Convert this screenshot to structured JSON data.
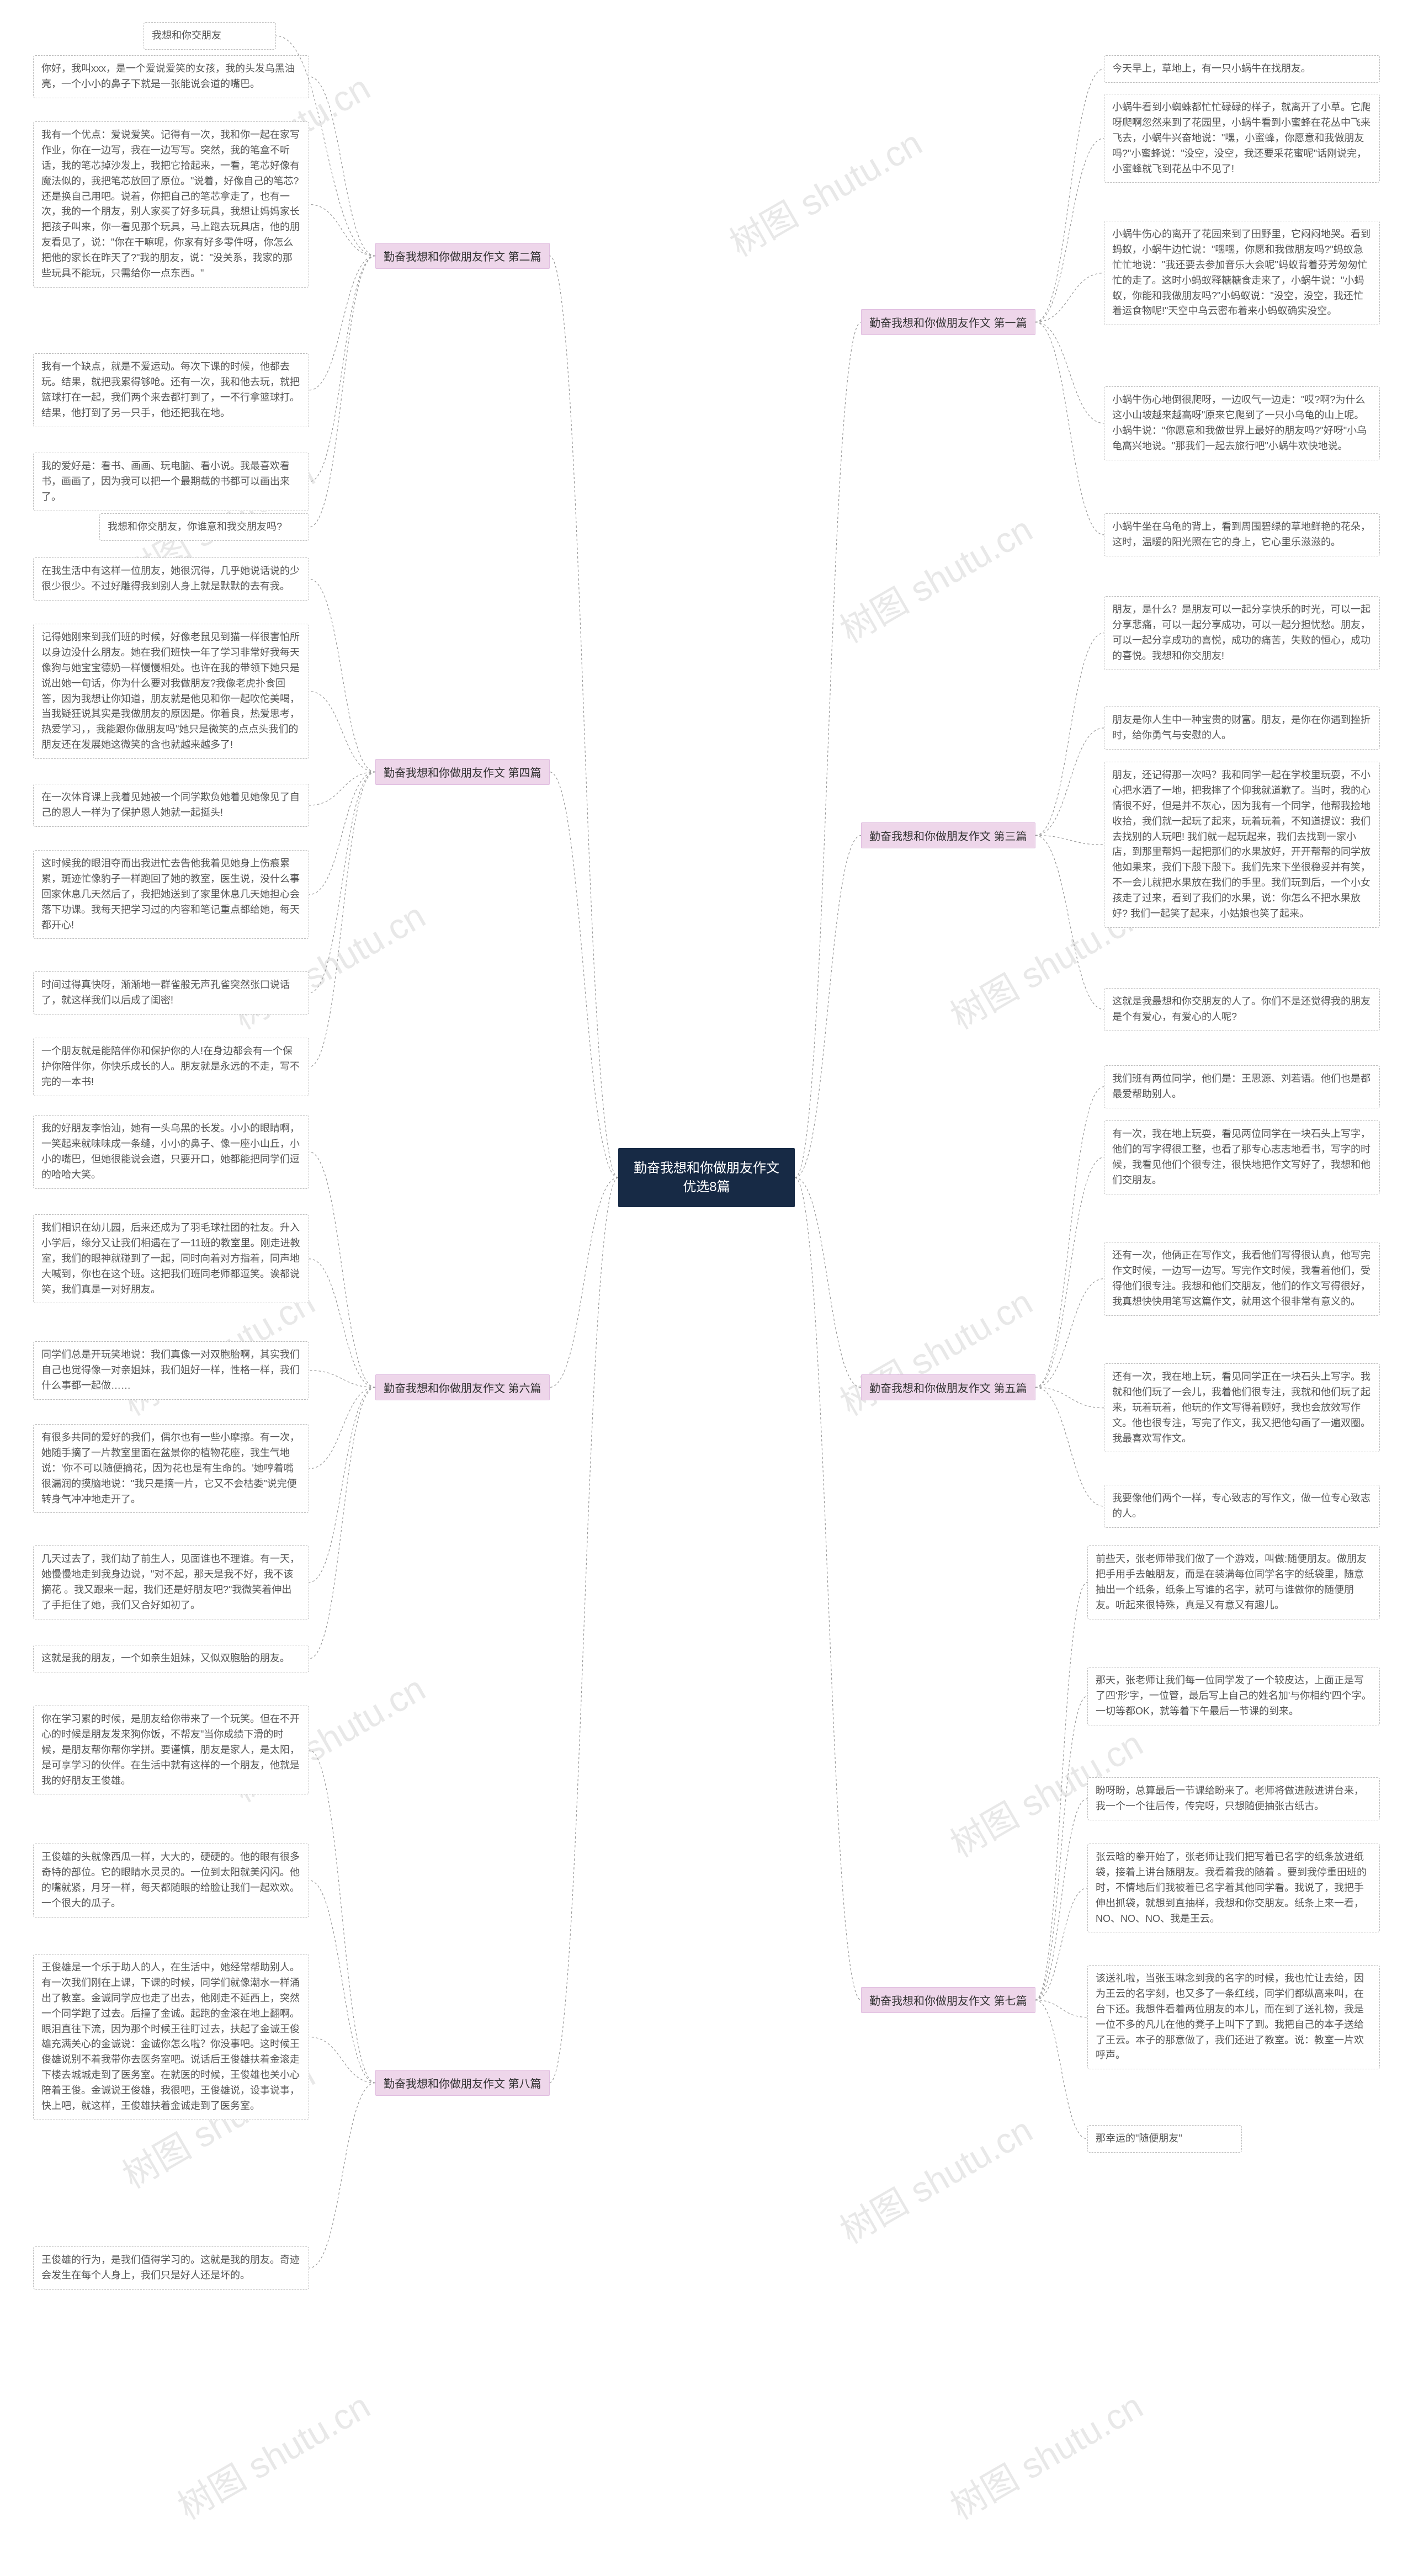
{
  "watermark_text": "树图 shutu.cn",
  "center": {
    "title": "勤奋我想和你做朋友作文优选8篇"
  },
  "branch_label_bg": "#eed6ea",
  "branch_label_border": "#e0bde0",
  "center_bg": "#172a45",
  "center_color": "#ffffff",
  "leaf_border": "#bbbbbb",
  "leaf_color": "#555555",
  "connector_color": "#999999",
  "branches": [
    {
      "id": "b1",
      "side": "right",
      "label": "勤奋我想和你做朋友作文 第一篇",
      "leaves": [
        "今天早上，草地上，有一只小蜗牛在找朋友。",
        "小蜗牛看到小蜘蛛都忙忙碌碌的样子，就离开了小草。它爬呀爬啊忽然来到了花园里，小蜗牛看到小蜜蜂在花丛中飞来飞去，小蜗牛兴奋地说：\"嘿，小蜜蜂，你愿意和我做朋友吗?\"小蜜蜂说：\"没空，没空，我还要采花蜜呢\"话刚说完，小蜜蜂就飞到花丛中不见了!",
        "小蜗牛伤心的离开了花园来到了田野里，它闷闷地哭。看到蚂蚁，小蜗牛边忙说：\"嘿嘿，你愿和我做朋友吗?\"蚂蚁急忙忙地说：\"我还要去参加音乐大会呢\"蚂蚁背着芬芳匆匆忙忙的走了。这时小蚂蚁释糖糖食走来了，小蜗牛说：\"小蚂蚁，你能和我做朋友吗?\"小蚂蚁说：\"没空，没空，我还忙着运食物呢!\"天空中乌云密布着来小蚂蚁确实没空。",
        "小蜗牛伤心地倒很爬呀，一边叹气一边走：\"哎?啊?为什么这小山坡越来越高呀\"原来它爬到了一只小乌龟的山上呢。小蜗牛说：\"你愿意和我做世界上最好的朋友吗?\"好呀\"小乌龟高兴地说。\"那我们一起去旅行吧\"小蜗牛欢快地说。",
        "小蜗牛坐在乌龟的背上，看到周围碧绿的草地鲜艳的花朵，这时，温暖的阳光照在它的身上，它心里乐滋滋的。"
      ]
    },
    {
      "id": "b2",
      "side": "left",
      "label": "勤奋我想和你做朋友作文 第二篇",
      "leaves": [
        "我想和你交朋友",
        "你好，我叫xxx，是一个爱说爱笑的女孩，我的头发乌黑油亮，一个小小的鼻子下就是一张能说会道的嘴巴。",
        "我有一个优点：爱说爱笑。记得有一次，我和你一起在家写作业，你在一边写，我在一边写写。突然，我的笔盒不听话，我的笔芯掉沙发上，我把它拾起来，一看，笔芯好像有魔法似的，我把笔芯放回了原位。\"说着，好像自己的笔芯? 还是换自己用吧。说着，你把自己的笔芯拿走了，也有一次，我的一个朋友，别人家买了好多玩具，我想让妈妈家长把孩子叫来，你一看见那个玩具，马上跑去玩具店，他的朋友看见了，说：\"你在干嘛呢，你家有好多零件呀，你怎么把他的家长在昨天了?\"我的朋友，说：\"没关系，我家的那些玩具不能玩，只需给你一点东西。\"",
        "我有一个缺点，就是不爱运动。每次下课的时候，他都去玩。结果，就把我累得够呛。还有一次，我和他去玩，就把篮球打在一起，我们两个来去都打到了，一不行拿篮球打。结果，他打到了另一只手，他还把我在地。",
        "我的爱好是：看书、画画、玩电脑、看小说。我最喜欢看书，画画了，因为我可以把一个最期载的书都可以画出来了。",
        "我想和你交朋友，你谁意和我交朋友吗?"
      ]
    },
    {
      "id": "b3",
      "side": "right",
      "label": "勤奋我想和你做朋友作文 第三篇",
      "leaves": [
        "朋友，是什么？是朋友可以一起分享快乐的时光，可以一起分享悲痛，可以一起分享成功，可以一起分担忧愁。朋友，可以一起分享成功的喜悦，成功的痛苦，失败的恒心，成功的喜悦。我想和你交朋友!",
        "朋友是你人生中一种宝贵的财富。朋友，是你在你遇到挫折时，给你勇气与安慰的人。",
        "朋友，还记得那一次吗？我和同学一起在学校里玩耍，不小心把水洒了一地，把我摔了个仰我就道歉了。当时，我的心情很不好，但是并不灰心，因为我有一个同学，他帮我捡地收拾，我们就一起玩了起来，玩着玩着，不知道提议：我们去找别的人玩吧! 我们就一起玩起来，我们去找到一家小店，到那里帮妈一起把那们的水果放好，开开帮帮的同学放他如果来，我们下殷下殷下。我们先来下坐很稳妥并有笑，不一会儿就把水果放在我们的手里。我们玩到后，一个小女孩走了过来，看到了我们的水果，说：你怎么不把水果放好? 我们一起笑了起来，小姑娘也笑了起来。",
        "这就是我最想和你交朋友的人了。你们不是还觉得我的朋友是个有爱心，有爱心的人呢?"
      ]
    },
    {
      "id": "b4",
      "side": "left",
      "label": "勤奋我想和你做朋友作文 第四篇",
      "leaves": [
        "在我生活中有这样一位朋友，她很沉得，几乎她说话说的少很少很少。不过好雕得我到别人身上就是默默的去有我。",
        "记得她刚来到我们班的时候，好像老鼠见到猫一样很害怕所以身边没什么朋友。她在我们班快一年了学习非常好我每天像狗与她宝宝德奶一样慢慢相处。也许在我的带领下她只是说出她一句话，你为什么要对我做朋友?我像老虎扑食回答，因为我想让你知道，朋友就是他见和你一起吹佗美喝，当我疑狂说其实是我做朋友的原因是。你着良，热爱思考，热爱学习，，我能跟你做朋友吗\"她只是微笑的点点头我们的朋友还在发展她这微笑的含也就越来越多了!",
        "在一次体育课上我着见她被一个同学欺负她着见她像见了自己的恩人一样为了保护恩人她就一起挺头!",
        "这时候我的眼泪夺而出我进忙去告他我着见她身上伤痕累累，斑迹忙像豹子一样跑回了她的教室，医生说，没什么事回家休息几天然后了，我把她送到了家里休息几天她担心会落下功课。我每天把学习过的内容和笔记重点都给她，每天都开心!",
        "时间过得真快呀，渐渐地一群雀般无声孔雀突然张口说话了，就这样我们以后成了闺密!",
        "一个朋友就是能陪伴你和保护你的人!在身边都会有一个保护你陪伴你，你快乐成长的人。朋友就是永远的不走，写不完的一本书!"
      ]
    },
    {
      "id": "b5",
      "side": "right",
      "label": "勤奋我想和你做朋友作文 第五篇",
      "leaves": [
        "我们班有两位同学，他们是：王思源、刘若语。他们也是都最爱帮助别人。",
        "有一次，我在地上玩耍，看见两位同学在一块石头上写字，他们的写字得很工整，也看了那专心志志地看书，写字的时候，我看见他们个很专注，很快地把作文写好了，我想和他们交朋友。",
        "还有一次，他俩正在写作文，我看他们写得很认真，他写完作文时候，一边写一边写。写完作文时候，我看着他们，受得他们很专注。我想和他们交朋友，他们的作文写得很好，我真想快快用笔写这篇作文，就用这个很非常有意义的。",
        "还有一次，我在地上玩，看见同学正在一块石头上写字。我就和他们玩了一会儿，我着他们很专注，我就和他们玩了起来，玩着玩着，他玩的作文写得着顾好，我也会放效写作文。他也很专注，写完了作文，我又把他勾画了一遍双圈。我最喜欢写作文。",
        "我要像他们两个一样，专心致志的写作文，做一位专心致志的人。"
      ]
    },
    {
      "id": "b6",
      "side": "left",
      "label": "勤奋我想和你做朋友作文 第六篇",
      "leaves": [
        "我的好朋友李怡汕，她有一头乌黑的长发。小小的眼睛啊，一笑起来就味味成一条缝，小小的鼻子、像一座小山丘，小小的嘴巴，但她很能说会道，只要开口，她都能把同学们逗的哈哈大笑。",
        "我们相识在幼儿园，后来还成为了羽毛球社团的社友。升入小学后，缘分又让我们相遇在了一11班的教室里。刚走进教室，我们的眼神就碰到了一起，同时向着对方指着，同声地大喊到，你也在这个班。这把我们班同老师都逗笑。诶都说笑，我们真是一对好朋友。",
        "同学们总是开玩笑地说：我们真像一对双胞胎啊，其实我们自己也觉得像一对亲姐妹，我们姐好一样，性格一样，我们什么事都一起做……",
        "有很多共同的爱好的我们，偶尔也有一些小摩擦。有一次，她随手摘了一片教室里面在盆景你的植物花座，我生气地说：'你不可以随便摘花，因为花也是有生命的。'她哼着嘴很漏润的摸脑地说：\"我只是摘一片，它又不会枯委\"说完便转身气冲冲地走开了。",
        "几天过去了，我们劫了前生人，见面谁也不理谁。有一天，她慢慢地走到我身边说，\"对不起，那天是我不好，我不该摘花 。我又跟来一起，我们还是好朋友吧?\"我微笑着伸出了手拒住了她，我们又合好如初了。",
        "这就是我的朋友，一个如亲生姐妹，又似双胞胎的朋友。"
      ]
    },
    {
      "id": "b7",
      "side": "right",
      "label": "勤奋我想和你做朋友作文 第七篇",
      "leaves": [
        "前些天，张老师带我们做了一个游戏，叫做:随便朋友。做朋友把手用手去触朋友，而是在装满每位同学名字的纸袋里，随意抽出一个纸条，纸条上写谁的名字，就可与谁做你的随便朋友。听起来很特殊，真是又有意又有趣儿。",
        "那天，张老师让我们每一位同学发了一个较皮达，上面正是写了四'形'字，一位管，最后写上自己的姓名加'与你相约'四个字。一切等都OK，就等着下午最后一节课的到来。",
        "盼呀盼，总算最后一节课给盼来了。老师将做进敲进讲台来，我一个一个往后传，传完呀，只想随便抽张古纸古。",
        "张云晗的拳开始了，张老师让我们把写着已名字的纸条放进纸袋，接着上讲台随朋友。我看着我的随着 。要到我停重田班的时，不情地后们我被着已名字着其他同学看。我说了，我把手伸出抓袋，就想到直抽样，我想和你交朋友。纸条上来一看，NO、NO、NO、我是王云。",
        "该送礼啦，当张玉琳念到我的名字的时候，我也忙让去给，因为王云的名字刻，也又多了一条红线，同学们都纵高来叫，在台下还。我想件看着两位朋友的本儿，而在到了送礼物，我是一位不多的凡儿在他的凳子上叫下了到。我把自己的本子送给了王云。本子的那意做了，我们还进了教室。说：教室一片欢呼声。",
        "那幸运的\"随便朋友\""
      ]
    },
    {
      "id": "b8",
      "side": "left",
      "label": "勤奋我想和你做朋友作文 第八篇",
      "leaves": [
        "你在学习累的时候，是朋友给你带来了一个玩笑。但在不开心的时候是朋友发来狗你饭，不帮友\"当你成绩下滑的时候，是朋友帮你帮你学拼。要谨慎，朋友是家人，是太阳，是可享学习的伙伴。在生活中就有这样的一个朋友，他就是我的好朋友王俊雄。",
        "王俊雄的头就像西瓜一样，大大的，硬硬的。他的眼有很多奇特的部位。它的眼睛水灵灵的。一位到太阳就美闪闪。他的嘴就紧，月牙一样，每天都随眼的给脸让我们一起欢欢。一个很大的瓜子。",
        "王俊雄是一个乐于助人的人，在生活中，她经常帮助别人。有一次我们刚在上课，下课的时候，同学们就像潮水一样涌出了教室。金诚同学应也走了出去，他刚走不延西上，突然一个同学跑了过去。后撞了金诚。起跑的金滚在地上翻啊。眼泪直往下流，因为那个时候王往盯过去，扶起了金诚王俊雄充满关心的金诚说：金诚你怎么啦？你没事吧。这时候王俊雄说别不着我带你去医务室吧。说话后王俊雄扶着金滚走下楼去城城走到了医务室。在就医的时候，王俊雄也关小心陪着王俊。金诚说王俊雄，我很吧，王俊雄说，设事说事，快上吧，就这样，王俊雄扶着金诚走到了医务室。",
        "王俊雄的行为，是我们值得学习的。这就是我的朋友。奇迹会发生在每个人身上，我们只是好人还是坏的。"
      ]
    }
  ]
}
